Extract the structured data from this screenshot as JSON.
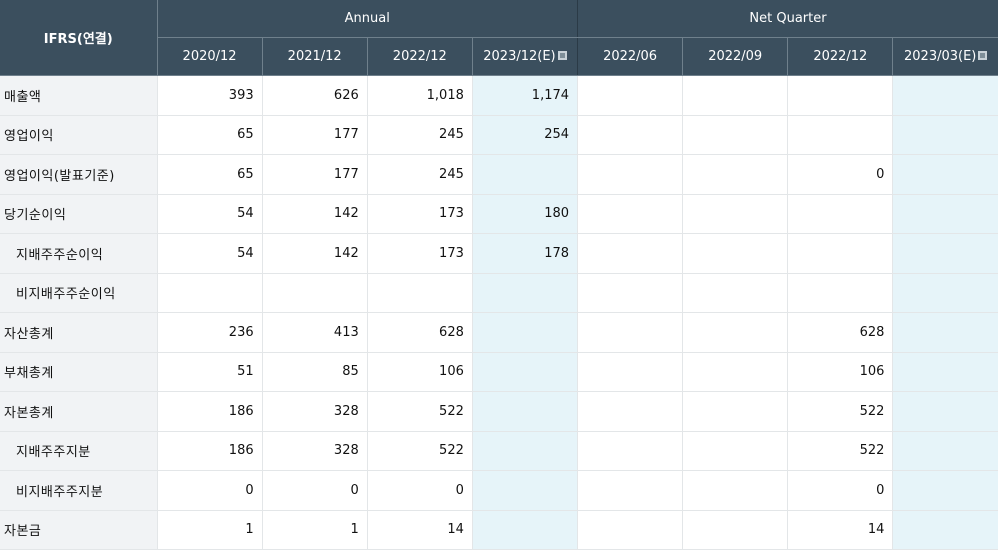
{
  "header": {
    "corner_label": "IFRS(연결)",
    "annual_label": "Annual",
    "quarter_label": "Net Quarter",
    "annual_periods": [
      "2020/12",
      "2021/12",
      "2022/12",
      "2023/12(E)"
    ],
    "quarter_periods": [
      "2022/06",
      "2022/09",
      "2022/12",
      "2023/03(E)"
    ]
  },
  "rows": [
    {
      "label": "매출액",
      "values": [
        "393",
        "626",
        "1,018",
        "1,174",
        "",
        "",
        "",
        ""
      ]
    },
    {
      "label": "영업이익",
      "values": [
        "65",
        "177",
        "245",
        "254",
        "",
        "",
        "",
        ""
      ]
    },
    {
      "label": "영업이익(발표기준)",
      "values": [
        "65",
        "177",
        "245",
        "",
        "",
        "",
        "0",
        ""
      ]
    },
    {
      "label": "당기순이익",
      "values": [
        "54",
        "142",
        "173",
        "180",
        "",
        "",
        "",
        ""
      ]
    },
    {
      "label": "지배주주순이익",
      "values": [
        "54",
        "142",
        "173",
        "178",
        "",
        "",
        "",
        ""
      ]
    },
    {
      "label": "비지배주주순이익",
      "values": [
        "",
        "",
        "",
        "",
        "",
        "",
        "",
        ""
      ]
    },
    {
      "label": "자산총계",
      "values": [
        "236",
        "413",
        "628",
        "",
        "",
        "",
        "628",
        ""
      ]
    },
    {
      "label": "부채총계",
      "values": [
        "51",
        "85",
        "106",
        "",
        "",
        "",
        "106",
        ""
      ]
    },
    {
      "label": "자본총계",
      "values": [
        "186",
        "328",
        "522",
        "",
        "",
        "",
        "522",
        ""
      ]
    },
    {
      "label": "지배주주지분",
      "values": [
        "186",
        "328",
        "522",
        "",
        "",
        "",
        "522",
        ""
      ]
    },
    {
      "label": "비지배주주지분",
      "values": [
        "0",
        "0",
        "0",
        "",
        "",
        "",
        "0",
        ""
      ]
    },
    {
      "label": "자본금",
      "values": [
        "1",
        "1",
        "14",
        "",
        "",
        "",
        "14",
        ""
      ]
    }
  ],
  "estimate_icon": "estimate-info-icon",
  "colors": {
    "header_bg": "#3b4f5e",
    "estimate_bg": "#e6f4f9",
    "label_bg": "#f1f3f5"
  }
}
